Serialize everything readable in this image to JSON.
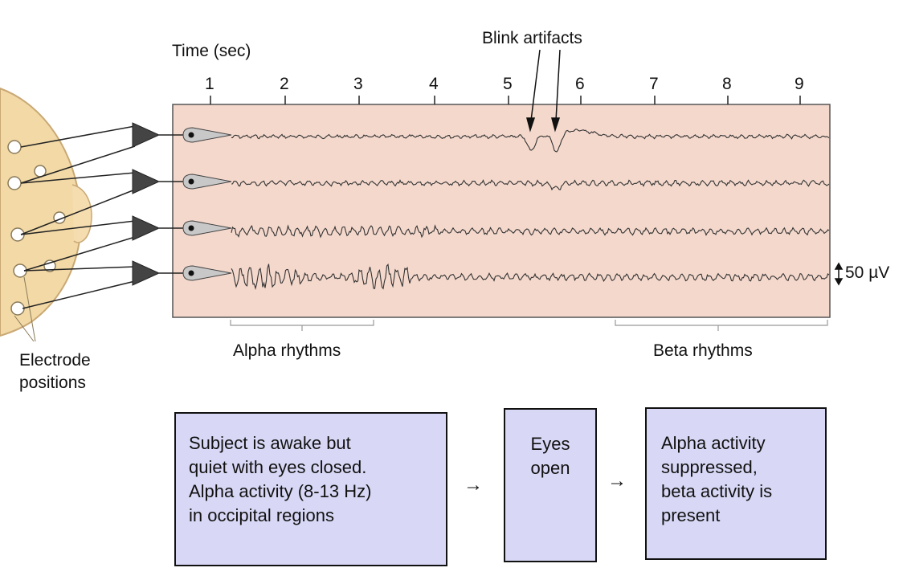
{
  "figure": {
    "time_label": "Time (sec)",
    "time_ticks": [
      "1",
      "2",
      "3",
      "4",
      "5",
      "6",
      "7",
      "8",
      "9"
    ],
    "blink_label": "Blink artifacts",
    "scale_label": "50 µV",
    "electrode_label_line1": "Electrode",
    "electrode_label_line2": "positions",
    "alpha_label": "Alpha rhythms",
    "beta_label": "Beta rhythms",
    "channel_count": 4
  },
  "flow": {
    "box1_lines": [
      "Subject is awake but",
      "quiet with eyes closed.",
      "Alpha activity (8-13 Hz)",
      "in occipital regions"
    ],
    "box2_lines": [
      "Eyes",
      "open"
    ],
    "box3_lines": [
      "Alpha activity",
      "suppressed,",
      "beta activity is",
      "present"
    ],
    "arrow": "→"
  },
  "colors": {
    "trace_panel": "#f4d8cc",
    "head": "#f2d9a6",
    "box_fill": "#d8d8f6",
    "amplifier": "#444444"
  }
}
